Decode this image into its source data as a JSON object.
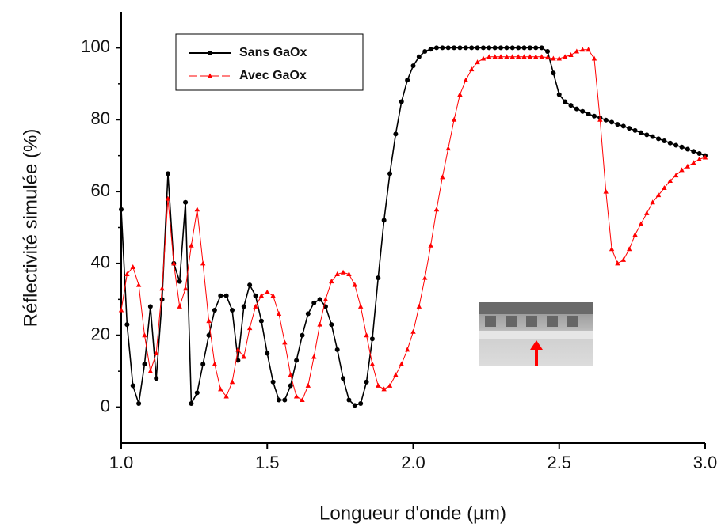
{
  "chart_data": {
    "type": "line",
    "x_label": "Longueur d'onde (µm)",
    "y_label": "Réflectivité simulée (%)",
    "xlim": [
      1,
      3
    ],
    "ylim": [
      -10,
      110
    ],
    "xticks": [
      {
        "value": 1,
        "label": "1.0"
      },
      1.5,
      {
        "value": 2,
        "label": "2.0"
      },
      2.5,
      {
        "value": 3,
        "label": "3.0"
      }
    ],
    "yticks": [
      0,
      20,
      40,
      60,
      80,
      100
    ],
    "x": [
      1,
      1.02,
      1.04,
      1.06,
      1.08,
      1.1,
      1.12,
      1.14,
      1.16,
      1.18,
      1.2,
      1.22,
      1.24,
      1.26,
      1.28,
      1.3,
      1.32,
      1.34,
      1.36,
      1.38,
      1.4,
      1.42,
      1.44,
      1.46,
      1.48,
      1.5,
      1.52,
      1.54,
      1.56,
      1.58,
      1.6,
      1.62,
      1.64,
      1.66,
      1.68,
      1.7,
      1.72,
      1.74,
      1.76,
      1.78,
      1.8,
      1.82,
      1.84,
      1.86,
      1.88,
      1.9,
      1.92,
      1.94,
      1.96,
      1.98,
      2,
      2.02,
      2.04,
      2.06,
      2.08,
      2.1,
      2.12,
      2.14,
      2.16,
      2.18,
      2.2,
      2.22,
      2.24,
      2.26,
      2.28,
      2.3,
      2.32,
      2.34,
      2.36,
      2.38,
      2.4,
      2.42,
      2.44,
      2.46,
      2.48,
      2.5,
      2.52,
      2.54,
      2.56,
      2.58,
      2.6,
      2.62,
      2.64,
      2.66,
      2.68,
      2.7,
      2.72,
      2.74,
      2.76,
      2.78,
      2.8,
      2.82,
      2.84,
      2.86,
      2.88,
      2.9,
      2.92,
      2.94,
      2.96,
      2.98,
      3
    ],
    "series": [
      {
        "name": "Sans GaOx",
        "color": "#000000",
        "marker": "circle",
        "values": [
          55,
          23,
          6,
          1,
          12,
          28,
          8,
          30,
          65,
          40,
          35,
          57,
          1,
          4,
          12,
          20,
          27,
          31,
          31,
          27,
          13,
          28,
          34,
          31,
          24,
          15,
          7,
          2,
          2,
          6,
          13,
          20,
          26,
          29,
          30,
          28,
          23,
          16,
          8,
          2,
          0.5,
          1,
          7,
          19,
          36,
          52,
          65,
          76,
          85,
          91,
          95,
          97.5,
          99,
          99.6,
          100,
          100,
          100,
          100,
          100,
          100,
          100,
          100,
          100,
          100,
          100,
          100,
          100,
          100,
          100,
          100,
          100,
          100,
          100,
          99,
          93,
          87,
          85,
          84,
          83,
          82.3,
          81.6,
          81,
          80.5,
          79.9,
          79.3,
          78.7,
          78.2,
          77.6,
          77,
          76.4,
          75.8,
          75.3,
          74.7,
          74.1,
          73.5,
          72.9,
          72.4,
          71.8,
          71.2,
          70.6,
          70
        ]
      },
      {
        "name": "Avec GaOx",
        "color": "#ff0000",
        "marker": "triangle",
        "values": [
          27,
          37,
          39,
          34,
          20,
          10,
          15,
          33,
          58,
          40,
          28,
          33,
          45,
          55,
          40,
          24,
          12,
          5,
          3,
          7,
          16,
          14,
          22,
          28,
          31,
          32,
          31,
          26,
          18,
          9,
          3,
          2,
          6,
          14,
          23,
          30,
          35,
          37,
          37.5,
          37,
          34,
          28,
          20,
          12,
          6,
          5,
          6,
          9,
          12,
          16,
          21,
          28,
          36,
          45,
          55,
          64,
          72,
          80,
          87,
          91,
          94,
          96,
          97,
          97.5,
          97.5,
          97.5,
          97.5,
          97.5,
          97.5,
          97.5,
          97.5,
          97.5,
          97.5,
          97.3,
          97,
          97,
          97.5,
          98,
          99,
          99.5,
          99.5,
          97,
          80,
          60,
          44,
          40,
          41,
          44,
          48,
          51,
          54,
          57,
          59,
          61,
          63,
          64.5,
          66,
          67,
          68,
          69,
          69.5
        ]
      }
    ]
  }
}
